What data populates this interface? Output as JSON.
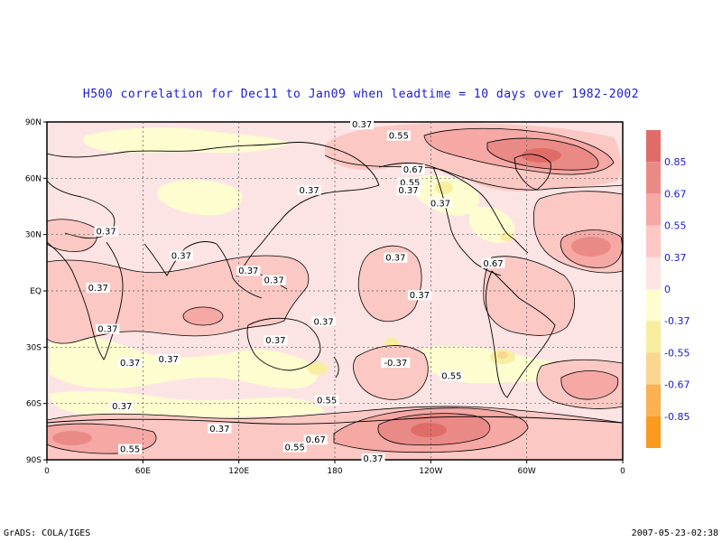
{
  "title": "H500 correlation for  Dec11 to Jan09  when leadtime =  10 days over 1982-2002",
  "footer": {
    "left": "GrADS: COLA/IGES",
    "right": "2007-05-23-02:38"
  },
  "colors": {
    "pos_lt": "#fde4e4",
    "pos_37": "#fbc8c4",
    "pos_55": "#f5a8a4",
    "pos_67": "#ea8a86",
    "pos_85": "#e06c68",
    "neg_lt": "#fdfdd0",
    "neg_37": "#f8eea0",
    "neg_55": "#fbd690",
    "neg_67": "#fcb050",
    "neg_85": "#fc9a20"
  },
  "map": {
    "lat_ticks": [
      "90N",
      "60N",
      "30N",
      "EQ",
      "30S",
      "60S",
      "90S"
    ],
    "lon_ticks": [
      "0",
      "60E",
      "120E",
      "180",
      "120W",
      "60W",
      "0"
    ]
  },
  "colorbar": {
    "labels": [
      "0.85",
      "0.67",
      "0.55",
      "0.37",
      "0",
      "-0.37",
      "-0.55",
      "-0.67",
      "-0.85"
    ]
  },
  "contour_labels": [
    {
      "text": "0.37",
      "lon": 197,
      "lat": 88
    },
    {
      "text": "0.55",
      "lon": 220,
      "lat": 82
    },
    {
      "text": "0.67",
      "lon": 229,
      "lat": 64
    },
    {
      "text": "0.55",
      "lon": 227,
      "lat": 57
    },
    {
      "text": "0.37",
      "lon": 226,
      "lat": 53
    },
    {
      "text": "0.37",
      "lon": 164,
      "lat": 53
    },
    {
      "text": "0.37",
      "lon": 246,
      "lat": 46
    },
    {
      "text": "0.37",
      "lon": 37,
      "lat": 31
    },
    {
      "text": "0.37",
      "lon": 84,
      "lat": 18
    },
    {
      "text": "0.37",
      "lon": 218,
      "lat": 17
    },
    {
      "text": "0.67",
      "lon": 279,
      "lat": 14
    },
    {
      "text": "0.37",
      "lon": 126,
      "lat": 10
    },
    {
      "text": "0.37",
      "lon": 142,
      "lat": 5
    },
    {
      "text": "0.37",
      "lon": 32,
      "lat": 1
    },
    {
      "text": "0.37",
      "lon": 233,
      "lat": -3
    },
    {
      "text": "0.37",
      "lon": 173,
      "lat": -17
    },
    {
      "text": "0.37",
      "lon": 38,
      "lat": -21
    },
    {
      "text": "0.37",
      "lon": 143,
      "lat": -27
    },
    {
      "text": "0.37",
      "lon": 76,
      "lat": -37
    },
    {
      "text": "0.37",
      "lon": 52,
      "lat": -39
    },
    {
      "text": "-0.37",
      "lon": 218,
      "lat": -39
    },
    {
      "text": "0.55",
      "lon": 253,
      "lat": -46
    },
    {
      "text": "0.55",
      "lon": 175,
      "lat": -59
    },
    {
      "text": "0.37",
      "lon": 47,
      "lat": -62
    },
    {
      "text": "0.37",
      "lon": 108,
      "lat": -74
    },
    {
      "text": "0.67",
      "lon": 168,
      "lat": -80
    },
    {
      "text": "0.55",
      "lon": 155,
      "lat": -84
    },
    {
      "text": "0.55",
      "lon": 52,
      "lat": -85
    },
    {
      "text": "0.37",
      "lon": 204,
      "lat": -90
    }
  ]
}
